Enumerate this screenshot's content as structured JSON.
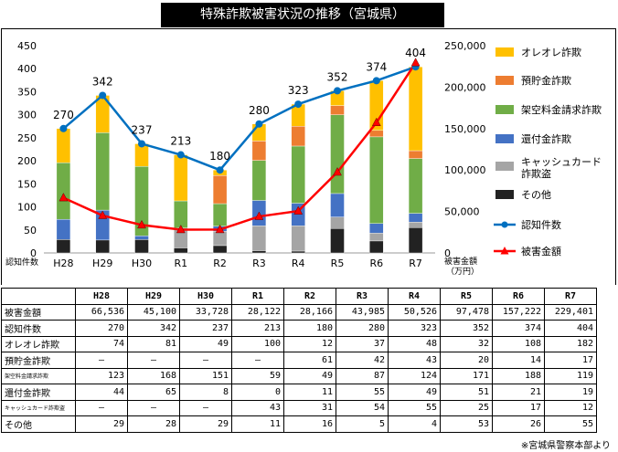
{
  "title": "特殊詐欺被害状況の推移（宮城県）",
  "source_note": "※宮城県警察本部より",
  "colors": {
    "oreore": "#FFC000",
    "yochokin": "#ED7D31",
    "kakuu": "#70AD47",
    "kanpu": "#4472C4",
    "cash": "#A5A5A5",
    "sonota": "#222222",
    "count_line": "#0070C0",
    "damage_line": "#FF0000"
  },
  "chart_data": {
    "type": "bar",
    "stacked": true,
    "categories": [
      "H28",
      "H29",
      "H30",
      "R1",
      "R2",
      "R3",
      "R4",
      "R5",
      "R6",
      "R7"
    ],
    "left_axis": {
      "label": "認知件数",
      "min": 0,
      "max": 450,
      "step": 50,
      "ticks": [
        "0",
        "50",
        "100",
        "150",
        "200",
        "250",
        "300",
        "350",
        "400",
        "450"
      ]
    },
    "right_axis": {
      "label_line1": "被害金額",
      "label_line2": "（万円）",
      "min": 0,
      "max": 250000,
      "step": 50000,
      "ticks": [
        "0",
        "50,000",
        "100,000",
        "150,000",
        "200,000",
        "250,000"
      ]
    },
    "series": [
      {
        "key": "sonota",
        "name": "その他",
        "values": [
          29,
          28,
          29,
          11,
          16,
          5,
          4,
          53,
          26,
          55
        ]
      },
      {
        "key": "cash",
        "name": "キャッシュカード詐欺盗",
        "values": [
          0,
          0,
          0,
          43,
          31,
          54,
          55,
          25,
          17,
          12
        ]
      },
      {
        "key": "kanpu",
        "name": "還付金詐欺",
        "values": [
          44,
          65,
          8,
          0,
          11,
          55,
          49,
          51,
          21,
          19
        ]
      },
      {
        "key": "kakuu",
        "name": "架空料金請求詐欺",
        "values": [
          123,
          168,
          151,
          59,
          49,
          87,
          124,
          171,
          188,
          119
        ]
      },
      {
        "key": "yochokin",
        "name": "預貯金詐欺",
        "values": [
          0,
          0,
          0,
          0,
          61,
          42,
          43,
          20,
          14,
          17
        ]
      },
      {
        "key": "oreore",
        "name": "オレオレ詐欺",
        "values": [
          74,
          81,
          49,
          100,
          12,
          37,
          48,
          32,
          108,
          182
        ]
      }
    ],
    "lines": [
      {
        "key": "count",
        "name": "認知件数",
        "axis": "left",
        "values": [
          270,
          342,
          237,
          213,
          180,
          280,
          323,
          352,
          374,
          404
        ],
        "labels": [
          "270",
          "342",
          "237",
          "213",
          "180",
          "280",
          "323",
          "352",
          "374",
          "404"
        ]
      },
      {
        "key": "damage",
        "name": "被害金額",
        "axis": "right",
        "values": [
          66536,
          45100,
          33728,
          28122,
          28166,
          43985,
          50526,
          97478,
          157222,
          229401
        ]
      }
    ],
    "legend_order": [
      "oreore",
      "yochokin",
      "kakuu",
      "kanpu",
      "cash",
      "sonota",
      "count",
      "damage"
    ],
    "legend_labels": {
      "oreore": [
        "オレオレ詐欺"
      ],
      "yochokin": [
        "預貯金詐欺"
      ],
      "kakuu": [
        "架空料金請求詐欺"
      ],
      "kanpu": [
        "還付金詐欺"
      ],
      "cash": [
        "キャッシュカード",
        "詐欺盗"
      ],
      "sonota": [
        "その他"
      ],
      "count": [
        "認知件数"
      ],
      "damage": [
        "被害金額"
      ]
    }
  },
  "table": {
    "header": [
      "",
      "H28",
      "H29",
      "H30",
      "R1",
      "R2",
      "R3",
      "R4",
      "R5",
      "R6",
      "R7"
    ],
    "rows": [
      {
        "label": "被害金額",
        "small": false,
        "cells": [
          "66,536",
          "45,100",
          "33,728",
          "28,122",
          "28,166",
          "43,985",
          "50,526",
          "97,478",
          "157,222",
          "229,401"
        ]
      },
      {
        "label": "認知件数",
        "small": false,
        "cells": [
          "270",
          "342",
          "237",
          "213",
          "180",
          "280",
          "323",
          "352",
          "374",
          "404"
        ]
      },
      {
        "label": "オレオレ詐欺",
        "small": false,
        "cells": [
          "74",
          "81",
          "49",
          "100",
          "12",
          "37",
          "48",
          "32",
          "108",
          "182"
        ]
      },
      {
        "label": "預貯金詐欺",
        "small": false,
        "cells": [
          "–",
          "–",
          "–",
          "–",
          "61",
          "42",
          "43",
          "20",
          "14",
          "17"
        ]
      },
      {
        "label": "架空料金請求詐欺",
        "small": true,
        "cells": [
          "123",
          "168",
          "151",
          "59",
          "49",
          "87",
          "124",
          "171",
          "188",
          "119"
        ]
      },
      {
        "label": "還付金詐欺",
        "small": false,
        "cells": [
          "44",
          "65",
          "8",
          "0",
          "11",
          "55",
          "49",
          "51",
          "21",
          "19"
        ]
      },
      {
        "label": "キャッシュカード詐欺盗",
        "small": true,
        "cells": [
          "–",
          "–",
          "–",
          "43",
          "31",
          "54",
          "55",
          "25",
          "17",
          "12"
        ]
      },
      {
        "label": "その他",
        "small": false,
        "cells": [
          "29",
          "28",
          "29",
          "11",
          "16",
          "5",
          "4",
          "53",
          "26",
          "55"
        ]
      }
    ]
  }
}
